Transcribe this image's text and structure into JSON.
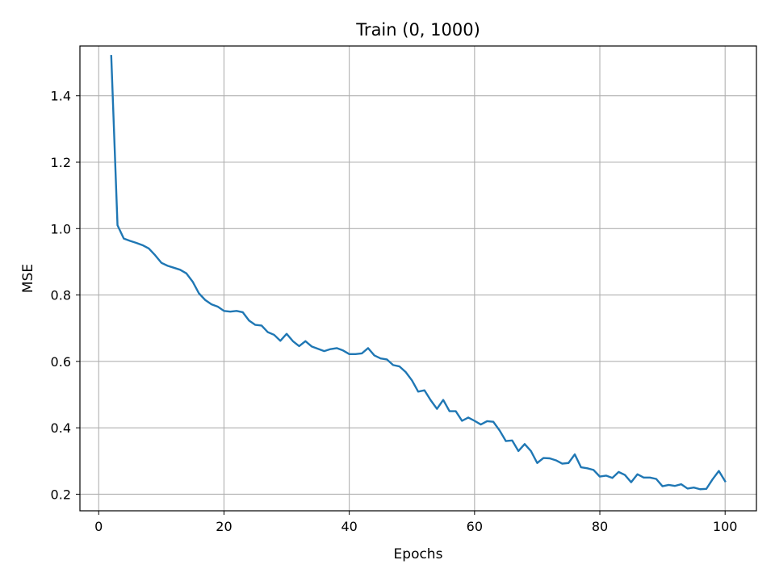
{
  "chart_data": {
    "type": "line",
    "title": "Train (0, 1000)",
    "xlabel": "Epochs",
    "ylabel": "MSE",
    "xlim": [
      -3,
      105
    ],
    "ylim": [
      0.15,
      1.55
    ],
    "xticks": [
      0,
      20,
      40,
      60,
      80,
      100
    ],
    "yticks": [
      0.2,
      0.4,
      0.6,
      0.8,
      1.0,
      1.2,
      1.4
    ],
    "xtick_labels": [
      "0",
      "20",
      "40",
      "60",
      "80",
      "100"
    ],
    "ytick_labels": [
      "0.2",
      "0.4",
      "0.6",
      "0.8",
      "1.0",
      "1.2",
      "1.4"
    ],
    "grid": true,
    "line_color": "#1f77b4",
    "series": [
      {
        "x": [
          2,
          3,
          4,
          5,
          6,
          7,
          8,
          9,
          10,
          11,
          12,
          13,
          14,
          15,
          16,
          17,
          18,
          19,
          20,
          21,
          22,
          23,
          24,
          25,
          26,
          27,
          28,
          29,
          30,
          31,
          32,
          33,
          34,
          35,
          36,
          37,
          38,
          39,
          40,
          41,
          42,
          43,
          44,
          45,
          46,
          47,
          48,
          49,
          50,
          51,
          52,
          53,
          54,
          55,
          56,
          57,
          58,
          59,
          60,
          61,
          62,
          63,
          64,
          65,
          66,
          67,
          68,
          69,
          70,
          71,
          72,
          73,
          74,
          75,
          76,
          77,
          78,
          79,
          80,
          81,
          82,
          83,
          84,
          85,
          86,
          87,
          88,
          89,
          90,
          91,
          92,
          93,
          94,
          95,
          96,
          97,
          98,
          99,
          100
        ],
        "values": [
          1.52,
          1.01,
          0.97,
          0.963,
          0.957,
          0.95,
          0.94,
          0.92,
          0.897,
          0.888,
          0.882,
          0.876,
          0.865,
          0.84,
          0.805,
          0.785,
          0.772,
          0.765,
          0.752,
          0.75,
          0.752,
          0.748,
          0.723,
          0.71,
          0.708,
          0.688,
          0.68,
          0.662,
          0.683,
          0.661,
          0.646,
          0.661,
          0.645,
          0.638,
          0.631,
          0.637,
          0.64,
          0.633,
          0.622,
          0.622,
          0.624,
          0.64,
          0.618,
          0.609,
          0.606,
          0.589,
          0.585,
          0.568,
          0.543,
          0.509,
          0.513,
          0.483,
          0.457,
          0.484,
          0.45,
          0.45,
          0.421,
          0.431,
          0.421,
          0.41,
          0.42,
          0.418,
          0.392,
          0.36,
          0.362,
          0.33,
          0.351,
          0.33,
          0.294,
          0.309,
          0.308,
          0.302,
          0.292,
          0.294,
          0.32,
          0.281,
          0.278,
          0.273,
          0.253,
          0.256,
          0.249,
          0.267,
          0.258,
          0.236,
          0.26,
          0.25,
          0.25,
          0.246,
          0.224,
          0.228,
          0.225,
          0.23,
          0.217,
          0.22,
          0.215,
          0.216,
          0.245,
          0.27,
          0.239
        ]
      }
    ]
  }
}
